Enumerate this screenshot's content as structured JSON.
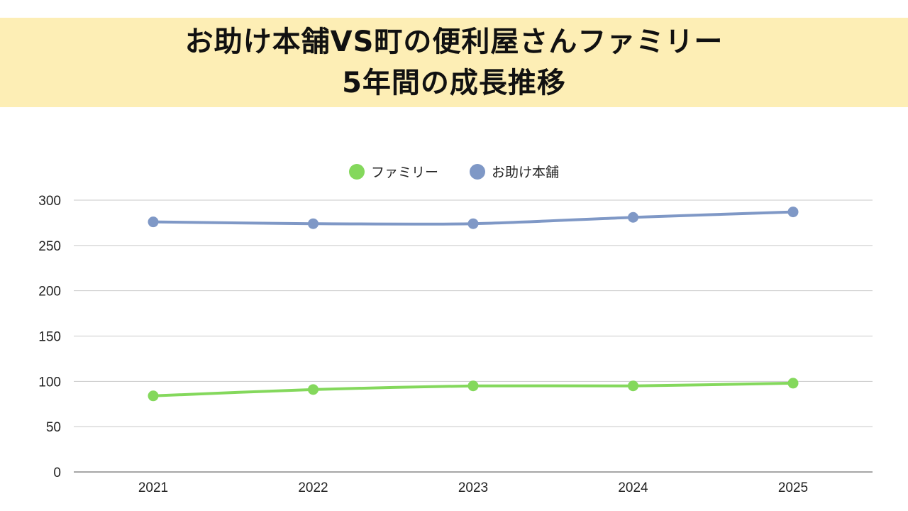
{
  "title": {
    "line1": "お助け本舗VS町の便利屋さんファミリー",
    "line2": "5年間の成長推移"
  },
  "colors": {
    "title_band": "#fdeeb5",
    "series_family": "#84d85c",
    "series_otasuke": "#7f98c6",
    "grid": "#c8c8c8",
    "axis": "#888888"
  },
  "chart_data": {
    "type": "line",
    "title": "お助け本舗VS町の便利屋さんファミリー 5年間の成長推移",
    "xlabel": "",
    "ylabel": "",
    "categories": [
      "2021",
      "2022",
      "2023",
      "2024",
      "2025"
    ],
    "yticks": [
      "0",
      "50",
      "100",
      "150",
      "200",
      "250",
      "300"
    ],
    "ylim": [
      0,
      300
    ],
    "grid": true,
    "legend_position": "top-center",
    "series": [
      {
        "name": "ファミリー",
        "color": "#84d85c",
        "values": [
          84,
          91,
          95,
          95,
          98
        ]
      },
      {
        "name": "お助け本舗",
        "color": "#7f98c6",
        "values": [
          276,
          274,
          274,
          281,
          287
        ]
      }
    ]
  }
}
